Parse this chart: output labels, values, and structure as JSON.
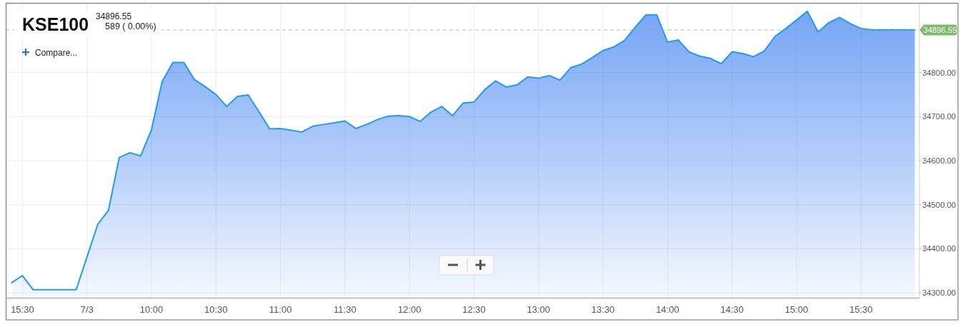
{
  "chart_data": {
    "type": "area",
    "title": "KSE100",
    "subtitle": "34896.55",
    "annotations": [
      "589 ( 0.00%)",
      "Compare..."
    ],
    "color": "#1e9bf0",
    "categories": [
      null,
      "15:30",
      null,
      null,
      null,
      null,
      null,
      "7/3",
      null,
      null,
      null,
      null,
      null,
      "10:00",
      null,
      null,
      null,
      null,
      null,
      "10:30",
      null,
      null,
      null,
      null,
      null,
      "11:00",
      null,
      null,
      null,
      null,
      null,
      "11:30",
      null,
      null,
      null,
      null,
      null,
      "12:00",
      null,
      null,
      null,
      null,
      null,
      "12:30",
      null,
      null,
      null,
      null,
      null,
      "13:00",
      null,
      null,
      null,
      null,
      null,
      "13:30",
      null,
      null,
      null,
      null,
      null,
      "14:00",
      null,
      null,
      null,
      null,
      null,
      "14:30",
      null,
      null,
      null,
      null,
      null,
      "15:00",
      null,
      null,
      null,
      null,
      null,
      "15:30",
      null,
      null,
      null,
      null,
      null
    ],
    "values": [
      34323,
      34339,
      34307,
      34307,
      34307,
      34307,
      34307,
      34381,
      34455,
      34487,
      34607,
      34618,
      34611,
      34670,
      34780,
      34823,
      34823,
      34784,
      34768,
      34750,
      34723,
      34746,
      34749,
      34711,
      34672,
      34673,
      34669,
      34665,
      34678,
      34682,
      34686,
      34690,
      34673,
      34682,
      34693,
      34701,
      34702,
      34700,
      34689,
      34710,
      34723,
      34702,
      34731,
      34733,
      34761,
      34781,
      34767,
      34772,
      34790,
      34787,
      34793,
      34783,
      34811,
      34819,
      34834,
      34850,
      34858,
      34873,
      34903,
      34931,
      34931,
      34869,
      34874,
      34847,
      34837,
      34832,
      34820,
      34847,
      34843,
      34836,
      34849,
      34882,
      34900,
      34919,
      34939,
      34892,
      34913,
      34925,
      34911,
      34900,
      34897,
      34897,
      34897,
      34897,
      34896.55
    ],
    "ylim": [
      34288,
      34957
    ],
    "yticks": [
      {
        "value": 34300,
        "label": "34300.00"
      },
      {
        "value": 34400,
        "label": "34400.00"
      },
      {
        "value": 34500,
        "label": "34500.00"
      },
      {
        "value": 34600,
        "label": "34600.00"
      },
      {
        "value": 34700,
        "label": "34700.00"
      },
      {
        "value": 34800,
        "label": "34800.00"
      }
    ],
    "grid": true,
    "ref_lines": [
      {
        "axis": "y",
        "value": 34896.55,
        "label": "34896.55",
        "color": "#7dbb6a",
        "line_style": "dashed"
      }
    ]
  }
}
